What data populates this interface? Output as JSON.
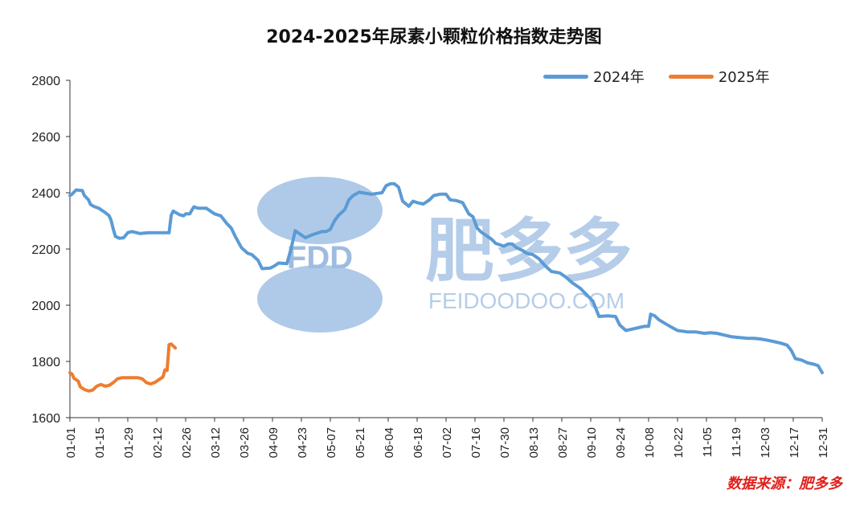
{
  "colors": {
    "series_2024": "#5b9bd5",
    "series_2025": "#ed7d31",
    "source_text": "#e0201b",
    "watermark": "#7aa6d8"
  },
  "watermark": {
    "logo_text": "FDD",
    "cn_text": "肥多多",
    "url_text": "FEIDOODOO.COM"
  },
  "source_label": "数据来源：肥多多",
  "chart_data": {
    "type": "line",
    "title": "2024-2025年尿素小颗粒价格指数走势图",
    "xlabel": "",
    "ylabel": "",
    "ylim": [
      1600,
      2800
    ],
    "yticks": [
      1600,
      1800,
      2000,
      2200,
      2400,
      2600,
      2800
    ],
    "xlim": [
      "01-01",
      "12-31"
    ],
    "xticks": [
      "01-01",
      "01-15",
      "01-29",
      "02-12",
      "02-26",
      "03-12",
      "03-26",
      "04-09",
      "04-23",
      "05-07",
      "05-21",
      "06-04",
      "06-18",
      "07-02",
      "07-16",
      "07-30",
      "08-13",
      "08-27",
      "09-10",
      "09-24",
      "10-08",
      "10-22",
      "11-05",
      "11-19",
      "12-03",
      "12-17",
      "12-31"
    ],
    "grid": false,
    "legend_position": "top-right",
    "series": [
      {
        "name": "2024年",
        "color": "#5b9bd5",
        "points": [
          [
            "01-01",
            2390
          ],
          [
            "01-02",
            2395
          ],
          [
            "01-04",
            2410
          ],
          [
            "01-07",
            2408
          ],
          [
            "01-08",
            2390
          ],
          [
            "01-10",
            2375
          ],
          [
            "01-11",
            2358
          ],
          [
            "01-13",
            2350
          ],
          [
            "01-15",
            2345
          ],
          [
            "01-18",
            2330
          ],
          [
            "01-20",
            2318
          ],
          [
            "01-21",
            2300
          ],
          [
            "01-22",
            2270
          ],
          [
            "01-23",
            2245
          ],
          [
            "01-25",
            2238
          ],
          [
            "01-27",
            2240
          ],
          [
            "01-29",
            2258
          ],
          [
            "01-31",
            2262
          ],
          [
            "02-04",
            2255
          ],
          [
            "02-08",
            2258
          ],
          [
            "02-18",
            2258
          ],
          [
            "02-19",
            2320
          ],
          [
            "02-20",
            2335
          ],
          [
            "02-23",
            2322
          ],
          [
            "02-25",
            2318
          ],
          [
            "02-26",
            2325
          ],
          [
            "02-28",
            2325
          ],
          [
            "03-01",
            2338
          ],
          [
            "03-02",
            2350
          ],
          [
            "03-04",
            2345
          ],
          [
            "03-08",
            2345
          ],
          [
            "03-12",
            2325
          ],
          [
            "03-15",
            2318
          ],
          [
            "03-18",
            2290
          ],
          [
            "03-20",
            2275
          ],
          [
            "03-22",
            2245
          ],
          [
            "03-25",
            2205
          ],
          [
            "03-28",
            2185
          ],
          [
            "03-30",
            2180
          ],
          [
            "04-02",
            2160
          ],
          [
            "04-04",
            2130
          ],
          [
            "04-08",
            2132
          ],
          [
            "04-10",
            2140
          ],
          [
            "04-12",
            2150
          ],
          [
            "04-16",
            2148
          ],
          [
            "04-18",
            2200
          ],
          [
            "04-20",
            2265
          ],
          [
            "04-22",
            2255
          ],
          [
            "04-25",
            2240
          ],
          [
            "04-28",
            2250
          ],
          [
            "05-03",
            2262
          ],
          [
            "05-05",
            2262
          ],
          [
            "05-07",
            2270
          ],
          [
            "05-09",
            2300
          ],
          [
            "05-11",
            2320
          ],
          [
            "05-14",
            2340
          ],
          [
            "05-16",
            2375
          ],
          [
            "05-18",
            2390
          ],
          [
            "05-21",
            2402
          ],
          [
            "05-24",
            2398
          ],
          [
            "05-27",
            2395
          ],
          [
            "05-30",
            2398
          ],
          [
            "06-01",
            2400
          ],
          [
            "06-03",
            2425
          ],
          [
            "06-05",
            2432
          ],
          [
            "06-07",
            2432
          ],
          [
            "06-09",
            2420
          ],
          [
            "06-11",
            2370
          ],
          [
            "06-14",
            2352
          ],
          [
            "06-16",
            2370
          ],
          [
            "06-18",
            2365
          ],
          [
            "06-21",
            2360
          ],
          [
            "06-24",
            2375
          ],
          [
            "06-26",
            2390
          ],
          [
            "06-29",
            2395
          ],
          [
            "07-02",
            2395
          ],
          [
            "07-04",
            2375
          ],
          [
            "07-07",
            2372
          ],
          [
            "07-10",
            2365
          ],
          [
            "07-13",
            2325
          ],
          [
            "07-15",
            2315
          ],
          [
            "07-17",
            2275
          ],
          [
            "07-19",
            2260
          ],
          [
            "07-21",
            2250
          ],
          [
            "07-24",
            2235
          ],
          [
            "07-26",
            2220
          ],
          [
            "07-30",
            2210
          ],
          [
            "08-01",
            2218
          ],
          [
            "08-03",
            2218
          ],
          [
            "08-05",
            2205
          ],
          [
            "08-08",
            2195
          ],
          [
            "08-10",
            2185
          ],
          [
            "08-13",
            2180
          ],
          [
            "08-16",
            2165
          ],
          [
            "08-19",
            2140
          ],
          [
            "08-22",
            2120
          ],
          [
            "08-26",
            2115
          ],
          [
            "08-29",
            2100
          ],
          [
            "09-01",
            2080
          ],
          [
            "09-05",
            2060
          ],
          [
            "09-09",
            2030
          ],
          [
            "09-11",
            2015
          ],
          [
            "09-14",
            1960
          ],
          [
            "09-18",
            1962
          ],
          [
            "09-22",
            1960
          ],
          [
            "09-24",
            1930
          ],
          [
            "09-27",
            1910
          ],
          [
            "09-30",
            1915
          ],
          [
            "10-03",
            1920
          ],
          [
            "10-06",
            1925
          ],
          [
            "10-08",
            1925
          ],
          [
            "10-09",
            1968
          ],
          [
            "10-11",
            1962
          ],
          [
            "10-13",
            1948
          ],
          [
            "10-16",
            1935
          ],
          [
            "10-19",
            1922
          ],
          [
            "10-22",
            1910
          ],
          [
            "10-24",
            1908
          ],
          [
            "10-27",
            1905
          ],
          [
            "10-31",
            1905
          ],
          [
            "11-04",
            1900
          ],
          [
            "11-07",
            1902
          ],
          [
            "11-10",
            1900
          ],
          [
            "11-13",
            1895
          ],
          [
            "11-17",
            1888
          ],
          [
            "11-21",
            1885
          ],
          [
            "11-25",
            1882
          ],
          [
            "11-28",
            1882
          ],
          [
            "12-01",
            1880
          ],
          [
            "12-05",
            1875
          ],
          [
            "12-08",
            1870
          ],
          [
            "12-11",
            1865
          ],
          [
            "12-14",
            1858
          ],
          [
            "12-16",
            1840
          ],
          [
            "12-18",
            1810
          ],
          [
            "12-21",
            1805
          ],
          [
            "12-24",
            1795
          ],
          [
            "12-27",
            1790
          ],
          [
            "12-29",
            1785
          ],
          [
            "12-31",
            1760
          ]
        ]
      },
      {
        "name": "2025年",
        "color": "#ed7d31",
        "points": [
          [
            "01-01",
            1760
          ],
          [
            "01-02",
            1755
          ],
          [
            "01-03",
            1740
          ],
          [
            "01-05",
            1730
          ],
          [
            "01-06",
            1710
          ],
          [
            "01-08",
            1700
          ],
          [
            "01-10",
            1695
          ],
          [
            "01-12",
            1698
          ],
          [
            "01-14",
            1712
          ],
          [
            "01-16",
            1718
          ],
          [
            "01-18",
            1712
          ],
          [
            "01-20",
            1715
          ],
          [
            "01-22",
            1725
          ],
          [
            "01-24",
            1738
          ],
          [
            "01-26",
            1742
          ],
          [
            "01-29",
            1742
          ],
          [
            "02-01",
            1742
          ],
          [
            "02-03",
            1742
          ],
          [
            "02-05",
            1738
          ],
          [
            "02-07",
            1725
          ],
          [
            "02-09",
            1720
          ],
          [
            "02-11",
            1725
          ],
          [
            "02-13",
            1735
          ],
          [
            "02-15",
            1745
          ],
          [
            "02-16",
            1770
          ],
          [
            "02-17",
            1768
          ],
          [
            "02-18",
            1860
          ],
          [
            "02-19",
            1862
          ],
          [
            "02-20",
            1855
          ],
          [
            "02-21",
            1848
          ]
        ]
      }
    ]
  }
}
